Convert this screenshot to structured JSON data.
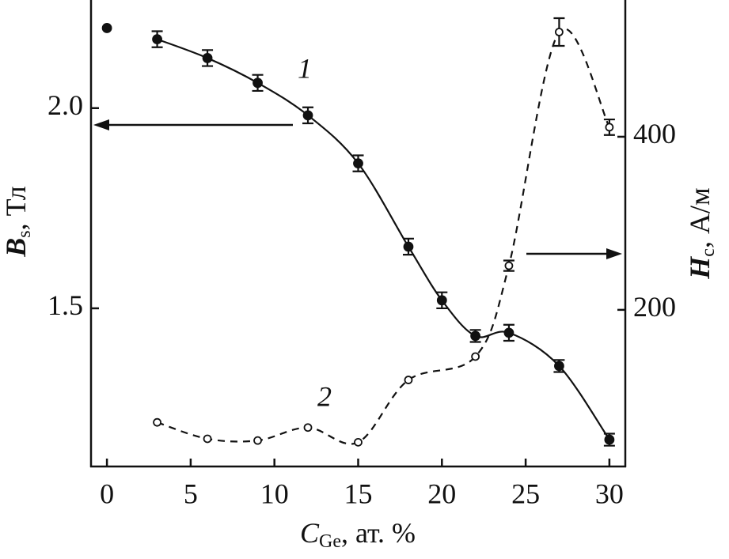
{
  "chart_data": {
    "type": "line",
    "x_label": {
      "main": "C",
      "sub": "Ge",
      "rest": ", ат. %"
    },
    "y_label": {
      "main": "B",
      "sub": "s",
      "rest": ", Тл"
    },
    "y2_label": {
      "main": "H",
      "sub": "c",
      "rest": ", А/м"
    },
    "annotations": [
      "1",
      "2"
    ],
    "xlim": [
      -0.95,
      30.95
    ],
    "xticks": [
      0,
      5,
      10,
      15,
      20,
      25,
      30
    ],
    "ylim": [
      1.105,
      2.27
    ],
    "yticks": [
      1.5,
      {
        "value": 2,
        "label": "2.0"
      }
    ],
    "y2lim": [
      19,
      558
    ],
    "y2ticks": [
      200,
      400
    ],
    "series": [
      {
        "color": "#111111",
        "marker": "filled",
        "line": "solid",
        "x": [
          0,
          3,
          6,
          9,
          12,
          15,
          18,
          20,
          22,
          24,
          27,
          30
        ],
        "values": [
          2.2,
          2.172,
          2.125,
          2.063,
          1.982,
          1.862,
          1.654,
          1.52,
          1.431,
          1.439,
          1.356,
          1.172
        ],
        "errors": [
          null,
          0.02,
          0.02,
          0.02,
          0.02,
          0.02,
          0.02,
          0.02,
          0.015,
          0.02,
          0.015,
          0.015
        ]
      },
      {
        "color": "#111111",
        "marker": "hollow",
        "line": "dashed",
        "axis": "y2",
        "x": [
          3,
          6,
          9,
          12,
          15,
          18,
          22,
          24,
          27,
          30
        ],
        "values": [
          70,
          51,
          49,
          64,
          47,
          119,
          146,
          251,
          521,
          411
        ],
        "errors": [
          null,
          null,
          null,
          null,
          null,
          null,
          null,
          6,
          16,
          9
        ]
      }
    ]
  }
}
